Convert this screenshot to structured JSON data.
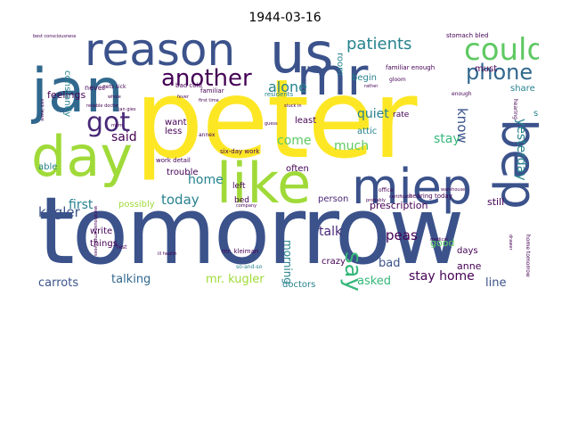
{
  "title": "1944-03-16",
  "words": {
    "peter": "peter",
    "tomorrow": "tomorrow",
    "us": "us",
    "jan": "jan",
    "reason": "reason",
    "mr": "mr",
    "day": "day",
    "like": "like",
    "miep": "miep",
    "bep": "bep",
    "could": "could",
    "another": "another",
    "got": "got",
    "phone": "phone",
    "patients": "patients",
    "say": "say",
    "alone": "alone",
    "quiet": "quiet",
    "know": "know",
    "stay": "stay",
    "yesterday": "yesterday",
    "come": "come",
    "much": "much",
    "home": "home",
    "today": "today",
    "kugler": "kugler",
    "first": "first",
    "said": "said",
    "carrots": "carrots",
    "talking": "talking",
    "mr_kugler": "mr. kugler",
    "morning": "morning",
    "talk": "talk",
    "peas": "peas",
    "bad": "bad",
    "asked": "asked",
    "stay_home": "stay home",
    "line": "line",
    "prescription": "prescription",
    "still": "still",
    "anne": "anne",
    "good": "good",
    "doctors": "doctors",
    "crazy": "crazy",
    "person": "person",
    "write": "write",
    "things": "things",
    "feelings": "feelings",
    "able": "able",
    "want": "want",
    "less": "less",
    "least": "least",
    "often": "often",
    "possibly": "possibly",
    "trouble": "trouble",
    "days": "days",
    "share": "share",
    "since": "since",
    "must": "must",
    "room": "room",
    "begin": "begin",
    "attic": "attic",
    "rate": "rate",
    "left": "left",
    "bed": "bed",
    "constantly": "constantly",
    "never": "never",
    "gets_sick": "gets sick",
    "bad_cold": "bad cold",
    "familiar": "familiar",
    "residents": "residents",
    "stomach_bled": "stomach bled",
    "familiar_enough": "familiar enough",
    "best_consciousness": "best consciousness",
    "six_day_work": "six-day work",
    "work_detail": "work detail",
    "mr_kleiman": "mr. kleiman",
    "so_and_so": "so-and-so",
    "hearing_today": "hearing today",
    "home_tomorrow": "home tomorrow",
    "first_time": "first time",
    "gloom": "gloom",
    "office": "office",
    "hearing": "hearing",
    "annex": "annex",
    "guess": "guess",
    "certificate": "certificate",
    "warehouse": "warehouse",
    "probably": "probably",
    "company": "company",
    "rest": "rest",
    "stuck_in": "stuck in",
    "enough": "enough",
    "whole": "whole",
    "fever": "fever",
    "jan_gies": "jan gies",
    "drawer": "drawer",
    "medical": "medical",
    "sick_leave": "sick leave",
    "reliable_doctor": "reliable doctor",
    "warehouse_employees": "warehouse employees",
    "mom": "mom",
    "ill_health": "ill health",
    "rather": "rather"
  },
  "colors": {
    "yellow": "#fde725",
    "navy": "#3b528b",
    "slate": "#31688e",
    "teal": "#21918c",
    "green": "#5ec962",
    "lime": "#a0da39",
    "purple": "#440154",
    "violet": "#482878",
    "darkteal": "#26828e",
    "seagreen": "#35b779"
  }
}
